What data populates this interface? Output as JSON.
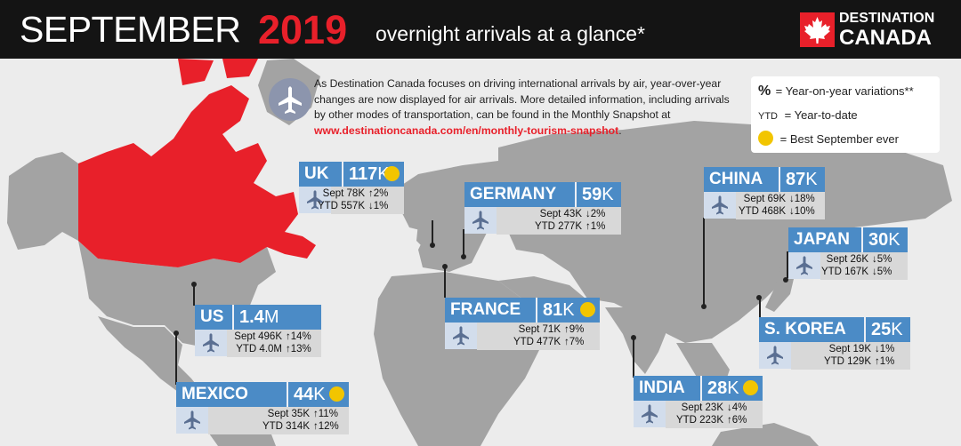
{
  "header": {
    "month": "SEPTEMBER",
    "year": "2019",
    "subtitle": "overnight arrivals at a glance*",
    "logo_line1": "DESTINATION",
    "logo_line2": "CANADA"
  },
  "intro": {
    "text": "As Destination Canada focuses on driving international arrivals by air, year-over-year changes are now displayed for air arrivals. More detailed information, including arrivals by other modes of transportation, can be found in the Monthly Snapshot at ",
    "link": "www.destinationcanada.com/en/monthly-tourism-snapshot",
    "tail": "."
  },
  "legend": {
    "pct_symbol": "%",
    "pct_text": "= Year-on-year variations**",
    "ytd_symbol": "YTD",
    "ytd_text": "= Year-to-date",
    "star_text": "= Best September ever"
  },
  "markets": [
    {
      "name": "UK",
      "value": "117",
      "unit": "K",
      "sept": "Sept 78K",
      "sept_chg": "↑2%",
      "ytd": "YTD 557K",
      "ytd_chg": "↓1%",
      "best": true
    },
    {
      "name": "GERMANY",
      "value": "59",
      "unit": "K",
      "sept": "Sept 43K",
      "sept_chg": "↓2%",
      "ytd": "YTD 277K",
      "ytd_chg": "↑1%",
      "best": false
    },
    {
      "name": "CHINA",
      "value": "87",
      "unit": "K",
      "sept": "Sept 69K",
      "sept_chg": "↓18%",
      "ytd": "YTD 468K",
      "ytd_chg": "↓10%",
      "best": false
    },
    {
      "name": "JAPAN",
      "value": "30",
      "unit": "K",
      "sept": "Sept 26K",
      "sept_chg": "↓5%",
      "ytd": "YTD 167K",
      "ytd_chg": "↓5%",
      "best": false
    },
    {
      "name": "FRANCE",
      "value": "81",
      "unit": "K",
      "sept": "Sept 71K",
      "sept_chg": "↑9%",
      "ytd": "YTD 477K",
      "ytd_chg": "↑7%",
      "best": true
    },
    {
      "name": "US",
      "value": "1.4",
      "unit": "M",
      "sept": "Sept 496K",
      "sept_chg": "↑14%",
      "ytd": "YTD 4.0M",
      "ytd_chg": "↑13%",
      "best": false
    },
    {
      "name": "S. KOREA",
      "value": "25",
      "unit": "K",
      "sept": "Sept 19K",
      "sept_chg": "↓1%",
      "ytd": "YTD 129K",
      "ytd_chg": "↑1%",
      "best": false
    },
    {
      "name": "MEXICO",
      "value": "44",
      "unit": "K",
      "sept": "Sept 35K",
      "sept_chg": "↑11%",
      "ytd": "YTD 314K",
      "ytd_chg": "↑12%",
      "best": true
    },
    {
      "name": "INDIA",
      "value": "28",
      "unit": "K",
      "sept": "Sept 23K",
      "sept_chg": "↓4%",
      "ytd": "YTD 223K",
      "ytd_chg": "↑6%",
      "best": true
    }
  ],
  "colors": {
    "canada": "#e8202a",
    "land": "#9a9a9a",
    "card_blue": "#4b8bc6",
    "header_bg": "#141414"
  }
}
